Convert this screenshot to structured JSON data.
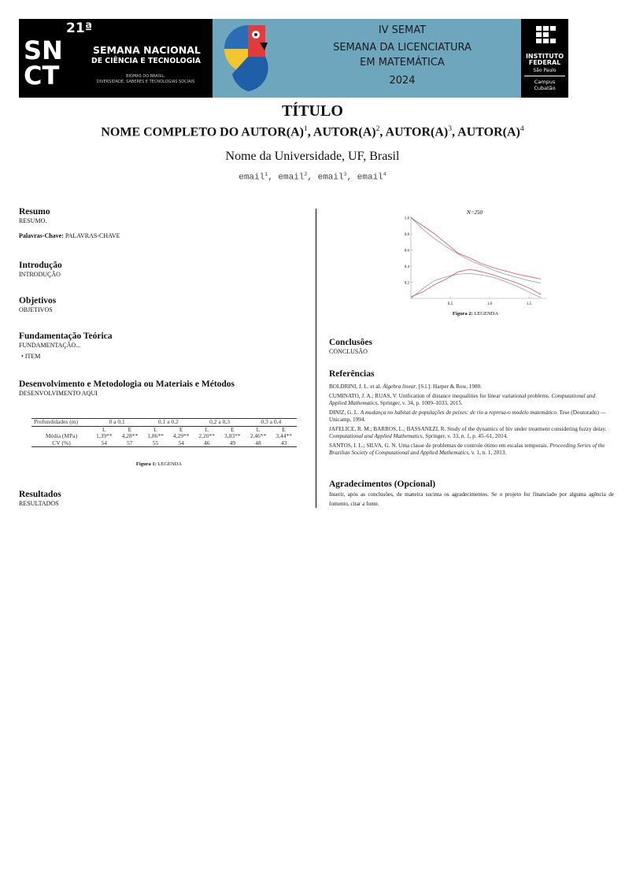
{
  "banner": {
    "snct": {
      "mark": "SNCT",
      "edition": "21ª",
      "line1": "SEMANA NACIONAL",
      "line2": "DE CIÊNCIA E TECNOLOGIA",
      "theme1": "BIOMAS DO BRASIL:",
      "theme2": "DIVERSIDADE, SABERES E TECNOLOGIAS SOCIAIS"
    },
    "event": {
      "line1": "IV SEMAT",
      "line2": "SEMANA DA LICENCIATURA",
      "line3": "EM MATEMÁTICA",
      "year": "2024"
    },
    "ifsp": {
      "line1": "INSTITUTO",
      "line2": "FEDERAL",
      "line3": "São Paulo",
      "line4": "Campus",
      "line5": "Cubatão"
    },
    "colors": {
      "black": "#000000",
      "blue": "#6ea7bd"
    }
  },
  "header": {
    "title": "TÍTULO",
    "authors": [
      {
        "name": "NOME COMPLETO DO AUTOR(A)",
        "sup": "1"
      },
      {
        "name": "AUTOR(A)",
        "sup": "2"
      },
      {
        "name": "AUTOR(A)",
        "sup": "3"
      },
      {
        "name": "AUTOR(A)",
        "sup": "4"
      }
    ],
    "university": "Nome da Universidade, UF, Brasil",
    "emails": [
      {
        "name": "email",
        "sup": "1"
      },
      {
        "name": "email",
        "sup": "2"
      },
      {
        "name": "email",
        "sup": "3"
      },
      {
        "name": "email",
        "sup": "4"
      }
    ]
  },
  "left": {
    "resumo": {
      "title": "Resumo",
      "text": "RESUMO.",
      "kw_label": "Palavras-Chave:",
      "kw": "PALAVRAS-CHAVE"
    },
    "introducao": {
      "title": "Introdução",
      "text": "INTRODUÇÃO"
    },
    "objetivos": {
      "title": "Objetivos",
      "text": "OBJETIVOS"
    },
    "fundamentacao": {
      "title": "Fundamentação Teórica",
      "text": "FUNDAMENTAÇÃO...",
      "item": "• ITEM"
    },
    "desenvolvimento": {
      "title": "Desenvolvimento e Metodologia ou Materiais e Métodos",
      "text": "DESENVOLVIMENTO AQUI"
    },
    "table": {
      "header": [
        "Profundidades (m)",
        "0 a 0,1",
        "0,1 a 0,2",
        "0,2 a 0,3",
        "0,3 a 0,4"
      ],
      "sub": [
        "L",
        "E",
        "L",
        "E",
        "L",
        "E",
        "L",
        "E"
      ],
      "rows": [
        {
          "label": "Média (MPa)",
          "values": [
            "1,39**",
            "4,28**",
            "1,86**",
            "4,29**",
            "2,20**",
            "3,83**",
            "2,46**",
            "3,44**"
          ]
        },
        {
          "label": "CV (%)",
          "values": [
            "54",
            "57",
            "55",
            "54",
            "46",
            "49",
            "48",
            "43"
          ]
        }
      ]
    },
    "fig1": {
      "label": "Figura 1:",
      "text": "LEGENDA"
    },
    "resultados": {
      "title": "Resultados",
      "text": "RESULTADOS"
    }
  },
  "right": {
    "fig2": {
      "label": "Figura 2:",
      "text": "LEGENDA"
    },
    "conclusoes": {
      "title": "Conclusões",
      "text": "CONCLUSÃO"
    },
    "referencias": {
      "title": "Referências",
      "items": [
        {
          "a": "BOLDRINI, J. L. et al. ",
          "i": "Álgebra linear",
          "b": ". [S.l.]: Harper & Row, 1980."
        },
        {
          "a": "CUMINATO, J. A.; RUAS, V. Unification of distance inequalities for linear variational problems. ",
          "i": "Computational and Applied Mathematics",
          "b": ", Springer, v. 34, p. 1009–1033, 2015."
        },
        {
          "a": "DINIZ, G. L. ",
          "i": "A mudança no habitat de populações de peixes: de rio a represa-o modelo matemático",
          "b": ". Tese (Doutorado) — Unicamp, 1994."
        },
        {
          "a": "JAFELICE, R. M.; BARROS, L.; BASSANEZI, R. Study of the dynamics of hiv under treatment considering fuzzy delay. ",
          "i": "Computational and Applied Mathematics",
          "b": ", Springer, v. 33, n. 1, p. 45–61, 2014."
        },
        {
          "a": "SANTOS, I. L.; SILVA, G. N. Uma classe de problemas de controle ótimo em escalas temporais. ",
          "i": "Proceeding Series of the Brazilian Society of Computational and Applied Mathematics",
          "b": ", v. 1, n. 1, 2013."
        }
      ]
    },
    "agradecimentos": {
      "title": "Agradecimentos (Opcional)",
      "text": "Inserir, após as conclusões, de maneira sucinta os agradecimentos.  Se o projeto for financiado por alguma agência de fomento, citar a fonte."
    }
  },
  "chart_data": {
    "type": "line",
    "title": "N=250",
    "xlim": [
      0,
      1.7
    ],
    "ylim": [
      0,
      1.0
    ],
    "xticks": [
      "0.5",
      "1.0",
      "1.5"
    ],
    "yticks": [
      "0.2",
      "0.4",
      "0.6",
      "0.8",
      "1.0"
    ],
    "grid": false,
    "x": [
      0,
      0.15,
      0.3,
      0.45,
      0.6,
      0.75,
      0.9,
      1.05,
      1.2,
      1.35,
      1.5,
      1.65
    ],
    "series": [
      {
        "color": "#8a9bb5",
        "values": [
          1.0,
          0.86,
          0.74,
          0.64,
          0.55,
          0.47,
          0.41,
          0.35,
          0.3,
          0.26,
          0.22,
          0.19
        ]
      },
      {
        "color": "#d9534f",
        "values": [
          1.0,
          0.9,
          0.8,
          0.68,
          0.56,
          0.5,
          0.43,
          0.38,
          0.34,
          0.3,
          0.27,
          0.24
        ]
      },
      {
        "color": "#8a9bb5",
        "values": [
          0.0,
          0.12,
          0.22,
          0.27,
          0.3,
          0.31,
          0.29,
          0.26,
          0.21,
          0.15,
          0.08,
          0.01
        ]
      },
      {
        "color": "#d9534f",
        "values": [
          0.02,
          0.08,
          0.17,
          0.24,
          0.33,
          0.36,
          0.33,
          0.29,
          0.24,
          0.19,
          0.13,
          0.05
        ]
      }
    ]
  }
}
